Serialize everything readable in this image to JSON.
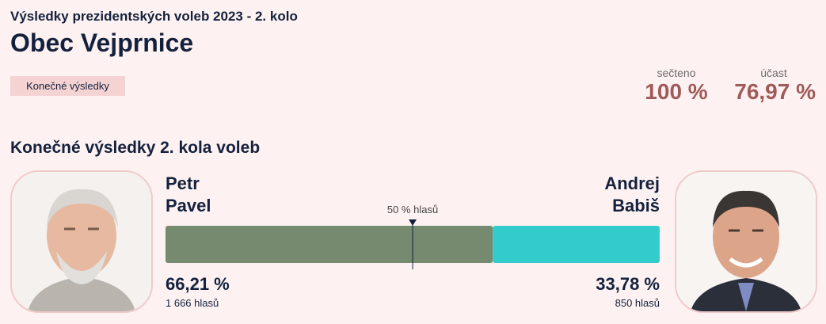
{
  "header": {
    "subtitle": "Výsledky prezidentských voleb 2023 - 2. kolo",
    "title": "Obec Vejprnice",
    "badge": "Konečné výsledky",
    "stats": [
      {
        "label": "sečteno",
        "value": "100 %"
      },
      {
        "label": "účast",
        "value": "76,97 %"
      }
    ]
  },
  "section_title": "Konečné výsledky 2. kola voleb",
  "midline": {
    "value": 50,
    "label": "50 % hlasů"
  },
  "candidates": [
    {
      "first_name": "Petr",
      "last_name": "Pavel",
      "percent": 66.21,
      "percent_label": "66,21 %",
      "votes_label": "1 666 hlasů",
      "color": "#758a6f"
    },
    {
      "first_name": "Andrej",
      "last_name": "Babiš",
      "percent": 33.78,
      "percent_label": "33,78 %",
      "votes_label": "850 hlasů",
      "color": "#33cccc"
    }
  ]
}
